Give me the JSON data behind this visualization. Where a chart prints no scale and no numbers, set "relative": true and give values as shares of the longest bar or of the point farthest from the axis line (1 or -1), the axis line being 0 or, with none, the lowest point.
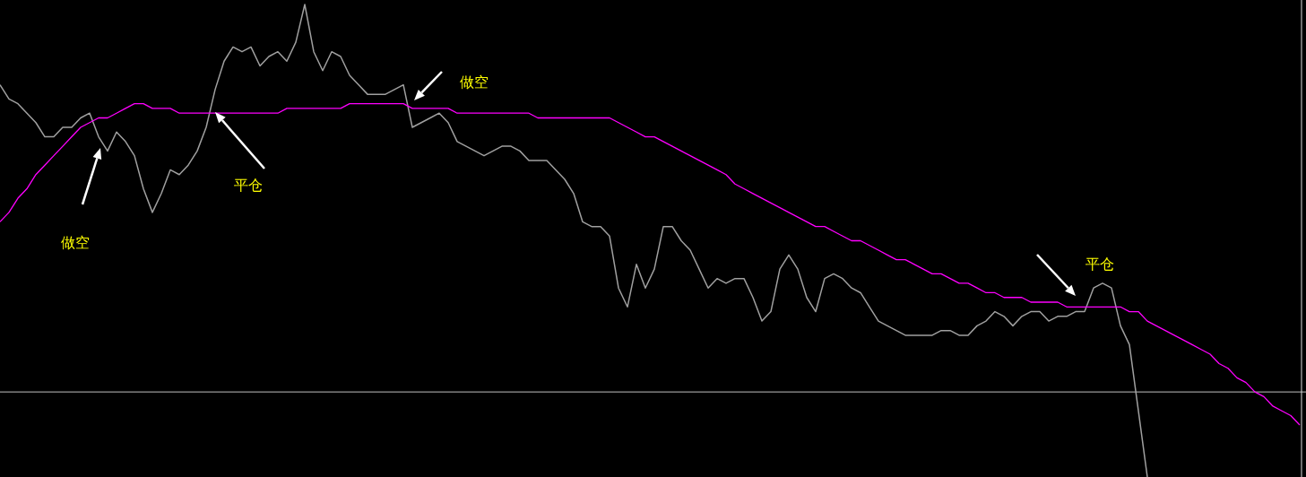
{
  "chart_data": {
    "type": "line",
    "relative": true,
    "marker": "none",
    "categories": [
      null,
      null,
      null,
      null,
      null,
      null,
      null,
      null,
      null,
      null,
      null,
      null,
      null,
      null,
      null,
      null,
      null,
      null,
      null,
      null,
      null,
      null,
      null,
      null,
      null,
      null,
      null,
      null,
      null,
      null,
      null,
      null,
      null,
      null,
      null,
      null,
      null,
      null,
      null,
      null,
      null,
      null,
      null,
      null,
      null,
      null,
      null,
      null,
      null,
      null,
      null,
      null,
      null,
      null,
      null,
      null,
      null,
      null,
      null,
      null,
      null,
      null,
      null,
      null,
      null,
      null,
      null,
      null,
      null,
      null,
      null,
      null,
      null,
      null,
      null,
      null,
      null,
      null,
      null,
      null,
      null,
      null,
      null,
      null,
      null,
      null,
      null,
      null,
      null,
      null,
      null,
      null,
      null,
      null,
      null,
      null,
      null,
      null,
      null,
      null,
      null,
      null,
      null,
      null,
      null,
      null,
      null,
      null,
      null,
      null,
      null,
      null,
      null,
      null,
      null,
      null,
      null,
      null,
      null,
      null,
      null,
      null,
      null,
      null,
      null,
      null,
      null,
      null,
      null,
      null,
      null,
      null,
      null,
      null,
      null,
      null,
      null,
      null,
      null,
      null,
      null,
      null,
      null,
      null,
      null,
      null
    ],
    "series": [
      {
        "color": "#a0a0a0",
        "values": [
          0.83,
          0.8,
          0.79,
          0.77,
          0.75,
          0.72,
          0.72,
          0.74,
          0.74,
          0.76,
          0.77,
          0.72,
          0.69,
          0.73,
          0.71,
          0.68,
          0.61,
          0.56,
          0.6,
          0.65,
          0.64,
          0.66,
          0.69,
          0.74,
          0.82,
          0.88,
          0.91,
          0.9,
          0.91,
          0.87,
          0.89,
          0.9,
          0.88,
          0.92,
          1.0,
          0.9,
          0.86,
          0.9,
          0.89,
          0.85,
          0.83,
          0.81,
          0.81,
          0.81,
          0.82,
          0.83,
          0.74,
          0.75,
          0.76,
          0.77,
          0.75,
          0.71,
          0.7,
          0.69,
          0.68,
          0.69,
          0.7,
          0.7,
          0.69,
          0.67,
          0.67,
          0.67,
          0.65,
          0.63,
          0.6,
          0.54,
          0.53,
          0.53,
          0.51,
          0.4,
          0.36,
          0.45,
          0.4,
          0.44,
          0.53,
          0.53,
          0.5,
          0.48,
          0.44,
          0.4,
          0.42,
          0.41,
          0.42,
          0.42,
          0.38,
          0.33,
          0.35,
          0.44,
          0.47,
          0.44,
          0.38,
          0.35,
          0.42,
          0.43,
          0.42,
          0.4,
          0.39,
          0.36,
          0.33,
          0.32,
          0.31,
          0.3,
          0.3,
          0.3,
          0.3,
          0.31,
          0.31,
          0.3,
          0.3,
          0.32,
          0.33,
          0.35,
          0.34,
          0.32,
          0.34,
          0.35,
          0.35,
          0.33,
          0.34,
          0.34,
          0.35,
          0.35,
          0.4,
          0.41,
          0.4,
          0.32,
          0.28,
          0.14,
          0,
          null,
          null,
          null,
          null,
          null,
          null,
          null,
          null,
          null,
          null,
          null,
          null,
          null,
          null,
          null,
          null,
          null
        ]
      },
      {
        "color": "#ff00ff",
        "values": [
          0.54,
          0.56,
          0.59,
          0.61,
          0.64,
          0.66,
          0.68,
          0.7,
          0.72,
          0.74,
          0.75,
          0.76,
          0.76,
          0.77,
          0.78,
          0.79,
          0.79,
          0.78,
          0.78,
          0.78,
          0.77,
          0.77,
          0.77,
          0.77,
          0.77,
          0.77,
          0.77,
          0.77,
          0.77,
          0.77,
          0.77,
          0.77,
          0.78,
          0.78,
          0.78,
          0.78,
          0.78,
          0.78,
          0.78,
          0.79,
          0.79,
          0.79,
          0.79,
          0.79,
          0.79,
          0.79,
          0.78,
          0.78,
          0.78,
          0.78,
          0.78,
          0.77,
          0.77,
          0.77,
          0.77,
          0.77,
          0.77,
          0.77,
          0.77,
          0.77,
          0.76,
          0.76,
          0.76,
          0.76,
          0.76,
          0.76,
          0.76,
          0.76,
          0.76,
          0.75,
          0.74,
          0.73,
          0.72,
          0.72,
          0.71,
          0.7,
          0.69,
          0.68,
          0.67,
          0.66,
          0.65,
          0.64,
          0.62,
          0.61,
          0.6,
          0.59,
          0.58,
          0.57,
          0.56,
          0.55,
          0.54,
          0.53,
          0.53,
          0.52,
          0.51,
          0.5,
          0.5,
          0.49,
          0.48,
          0.47,
          0.46,
          0.46,
          0.45,
          0.44,
          0.43,
          0.43,
          0.42,
          0.41,
          0.41,
          0.4,
          0.39,
          0.39,
          0.38,
          0.38,
          0.38,
          0.37,
          0.37,
          0.37,
          0.37,
          0.36,
          0.36,
          0.36,
          0.36,
          0.36,
          0.36,
          0.36,
          0.35,
          0.35,
          0.33,
          0.32,
          0.31,
          0.3,
          0.29,
          0.28,
          0.27,
          0.26,
          0.24,
          0.23,
          0.21,
          0.2,
          0.18,
          0.17,
          0.15,
          0.14,
          0.13,
          0.11
        ]
      }
    ],
    "ref_lines": [
      {
        "axis": "y",
        "value": 0.18,
        "color": "#c0c0c0"
      }
    ],
    "annotations": [
      "做空",
      "平仓",
      "做空",
      "平仓"
    ]
  }
}
